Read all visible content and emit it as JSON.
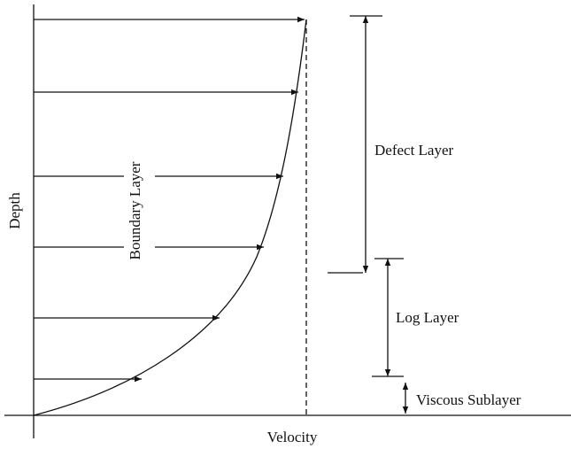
{
  "axes": {
    "y_label": "Depth",
    "x_label": "Velocity"
  },
  "regions": {
    "boundary": "Boundary Layer",
    "defect": "Defect Layer",
    "log": "Log Layer",
    "viscous": "Viscous Sublayer"
  }
}
